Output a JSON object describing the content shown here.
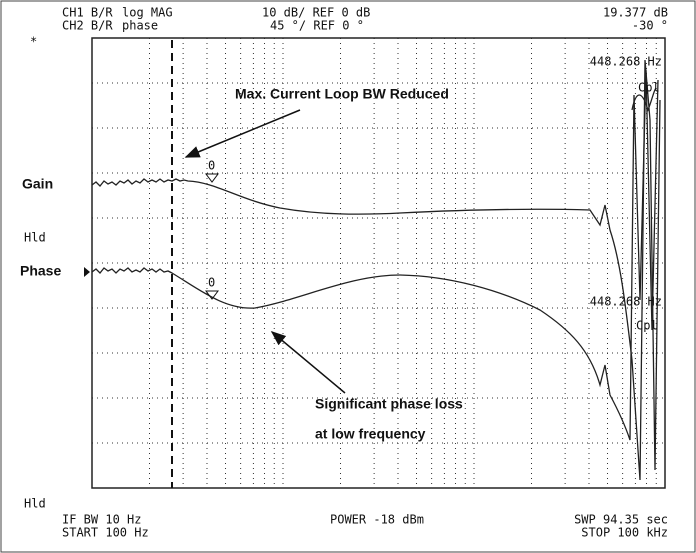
{
  "header": {
    "ch1": {
      "label": "CH1 B/R",
      "format": "log MAG",
      "scale": "10 dB/ REF 0 dB",
      "marker_value": "19.377 dB"
    },
    "ch2": {
      "label": "CH2 B/R",
      "format": "phase",
      "scale": "45 °/ REF 0 °",
      "marker_value": "-30 °"
    }
  },
  "plot": {
    "star": "*",
    "marker_freq_top": "448.268 Hz",
    "cpl_top": "Cpl",
    "marker_freq_bottom": "448.268 Hz",
    "cpl_bottom": "Cpl",
    "gain_label": "Gain",
    "phase_label": "Phase",
    "hld_top": "Hld",
    "hld_bottom": "Hld",
    "marker_gain": "0",
    "marker_phase": "0"
  },
  "annotations": {
    "bw": "Max. Current Loop BW Reduced",
    "phase_loss_1": "Significant phase loss",
    "phase_loss_2": "at low frequency"
  },
  "footer": {
    "if_bw": "IF BW 10 Hz",
    "start": "START  100 Hz",
    "power": "POWER -18 dBm",
    "sweep": "SWP  94.35 sec",
    "stop": "STOP  100 kHz"
  }
}
